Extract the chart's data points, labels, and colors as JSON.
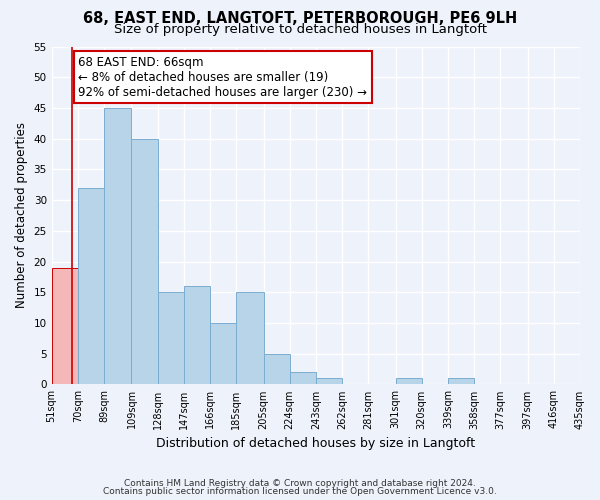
{
  "title": "68, EAST END, LANGTOFT, PETERBOROUGH, PE6 9LH",
  "subtitle": "Size of property relative to detached houses in Langtoft",
  "xlabel": "Distribution of detached houses by size in Langtoft",
  "ylabel": "Number of detached properties",
  "bin_edges": [
    51,
    70,
    89,
    109,
    128,
    147,
    166,
    185,
    205,
    224,
    243,
    262,
    281,
    301,
    320,
    339,
    358,
    377,
    397,
    416,
    435
  ],
  "bar_heights": [
    19,
    32,
    45,
    40,
    15,
    16,
    10,
    15,
    5,
    2,
    1,
    0,
    0,
    1,
    0,
    1,
    0,
    0,
    0,
    0
  ],
  "bar_color": "#b8d4e8",
  "bar_edge_color": "#7aadd0",
  "highlight_bar_index": 0,
  "highlight_color": "#f5b8b8",
  "highlight_edge_color": "#cc0000",
  "vline_x": 66,
  "vline_color": "#cc0000",
  "annotation_line1": "68 EAST END: 66sqm",
  "annotation_line2": "← 8% of detached houses are smaller (19)",
  "annotation_line3": "92% of semi-detached houses are larger (230) →",
  "annotation_box_color": "white",
  "annotation_box_edge": "#cc0000",
  "ylim": [
    0,
    55
  ],
  "yticks": [
    0,
    5,
    10,
    15,
    20,
    25,
    30,
    35,
    40,
    45,
    50,
    55
  ],
  "tick_labels": [
    "51sqm",
    "70sqm",
    "89sqm",
    "109sqm",
    "128sqm",
    "147sqm",
    "166sqm",
    "185sqm",
    "205sqm",
    "224sqm",
    "243sqm",
    "262sqm",
    "281sqm",
    "301sqm",
    "320sqm",
    "339sqm",
    "358sqm",
    "377sqm",
    "397sqm",
    "416sqm",
    "435sqm"
  ],
  "footer_line1": "Contains HM Land Registry data © Crown copyright and database right 2024.",
  "footer_line2": "Contains public sector information licensed under the Open Government Licence v3.0.",
  "bg_color": "#eef2fa",
  "title_fontsize": 10.5,
  "subtitle_fontsize": 9.5,
  "annotation_fontsize": 8.5,
  "tick_fontsize": 7,
  "ylabel_fontsize": 8.5,
  "xlabel_fontsize": 9,
  "footer_fontsize": 6.5
}
